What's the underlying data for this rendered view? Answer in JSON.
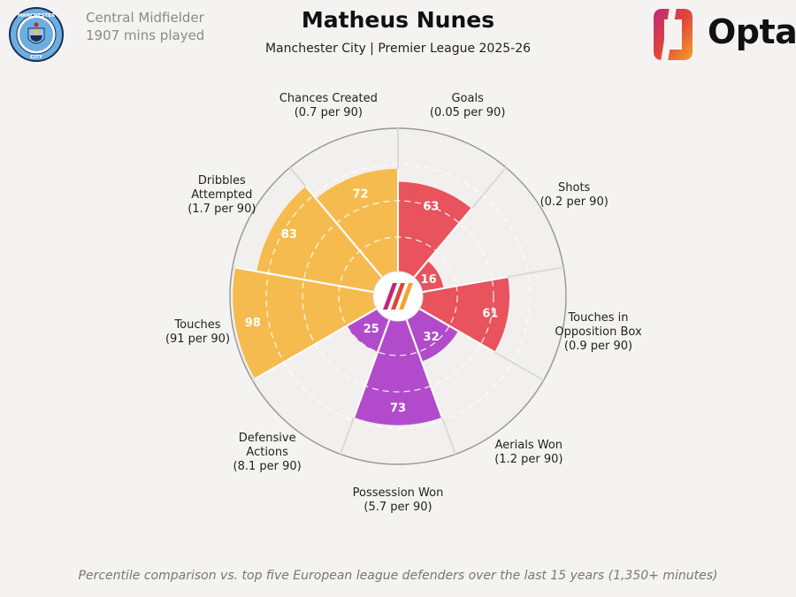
{
  "header": {
    "position": "Central Midfielder",
    "minutes": "1907 mins played",
    "title": "Matheus Nunes",
    "subtitle": "Manchester City | Premier League 2025-26",
    "club_logo_text_top": "MANCHESTER",
    "club_logo_text_bottom": "CITY",
    "brand": "Opta"
  },
  "footnote": "Percentile comparison vs. top five European league defenders over the last 15 years (1,350+ minutes)",
  "colors": {
    "attacking": "#e9535d",
    "possession": "#f6bb4e",
    "defending": "#b24bcb",
    "background": "#f4f3f1",
    "grid": "#ffffff",
    "outline": "#9a9a9a"
  },
  "chart_data": {
    "type": "polar-bar",
    "range": [
      0,
      100
    ],
    "categories": [
      {
        "label": [
          "Goals",
          "(0.05 per 90)"
        ],
        "value": 63,
        "group": "attacking"
      },
      {
        "label": [
          "Shots",
          "(0.2 per 90)"
        ],
        "value": 16,
        "group": "attacking"
      },
      {
        "label": [
          "Touches in",
          "Opposition Box",
          "(0.9 per 90)"
        ],
        "value": 61,
        "group": "attacking"
      },
      {
        "label": [
          "Aerials Won",
          "(1.2 per 90)"
        ],
        "value": 32,
        "group": "defending"
      },
      {
        "label": [
          "Possession Won",
          "(5.7 per 90)"
        ],
        "value": 73,
        "group": "defending"
      },
      {
        "label": [
          "Defensive",
          "Actions",
          "(8.1 per 90)"
        ],
        "value": 25,
        "group": "defending"
      },
      {
        "label": [
          "Touches",
          "(91 per 90)"
        ],
        "value": 98,
        "group": "possession"
      },
      {
        "label": [
          "Dribbles",
          "Attempted",
          "(1.7 per 90)"
        ],
        "value": 83,
        "group": "possession"
      },
      {
        "label": [
          "Chances Created",
          "(0.7 per 90)"
        ],
        "value": 72,
        "group": "possession"
      }
    ]
  }
}
